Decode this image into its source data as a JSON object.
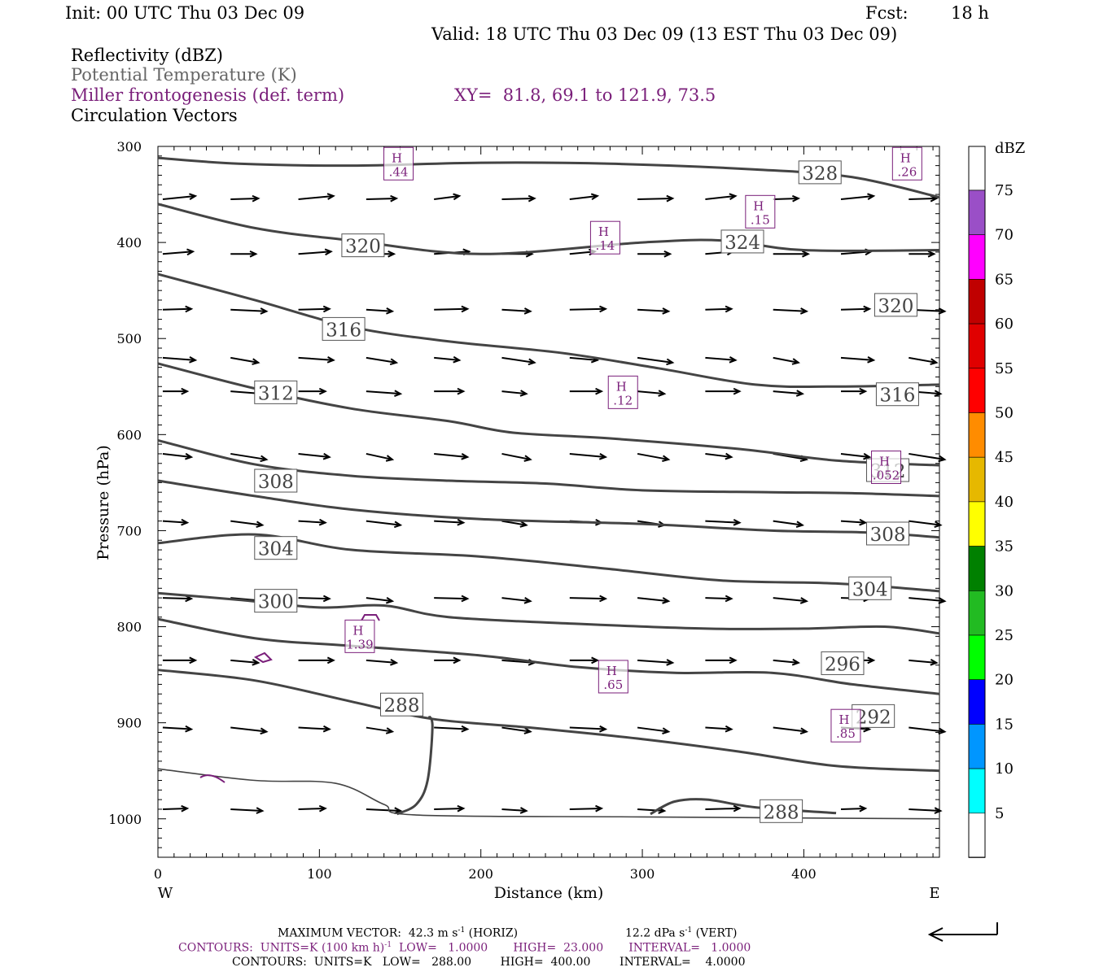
{
  "header": {
    "init": "Init: 00 UTC Thu 03 Dec 09",
    "fcst_label": "Fcst:",
    "fcst_value": "18 h",
    "valid": "Valid: 18 UTC Thu 03 Dec 09 (13 EST Thu 03 Dec 09)",
    "field1": "Reflectivity (dBZ)",
    "field2": "Potential Temperature (K)",
    "field3": "Miller frontogenesis (def. term)",
    "xy": "XY=  81.8, 69.1 to 121.9, 73.5",
    "field4": "Circulation Vectors"
  },
  "colors": {
    "theta": "#444444",
    "fronto": "#7a1f7a",
    "vector": "#000000"
  },
  "chart_data": {
    "type": "cross-section",
    "xlabel": "Distance (km)",
    "ylabel": "Pressure (hPa)",
    "xlim": [
      0,
      484
    ],
    "ylim": [
      1040,
      300
    ],
    "x_ticks": [
      "0",
      "100",
      "200",
      "300",
      "400"
    ],
    "y_ticks": [
      "300",
      "400",
      "500",
      "600",
      "700",
      "800",
      "900",
      "1000"
    ],
    "west_label": "W",
    "east_label": "E",
    "colorbar": {
      "unit": "dBZ",
      "levels": [
        "75",
        "70",
        "65",
        "60",
        "55",
        "50",
        "45",
        "40",
        "35",
        "30",
        "25",
        "20",
        "15",
        "10",
        "5"
      ],
      "colors": [
        "#9a4fc7",
        "#ff00ff",
        "#c00000",
        "#e00000",
        "#ff0000",
        "#ff8c00",
        "#e6b800",
        "#ffff00",
        "#008000",
        "#22bb22",
        "#00ff00",
        "#0000ff",
        "#0096ff",
        "#00ffff",
        "#ffffff"
      ]
    },
    "theta_labels": [
      {
        "text": "328",
        "x": 410,
        "p": 327
      },
      {
        "text": "324",
        "x": 362,
        "p": 399
      },
      {
        "text": "320",
        "x": 127,
        "p": 403
      },
      {
        "text": "320",
        "x": 457,
        "p": 465
      },
      {
        "text": "316",
        "x": 115,
        "p": 490
      },
      {
        "text": "316",
        "x": 458,
        "p": 558
      },
      {
        "text": "312",
        "x": 73,
        "p": 556
      },
      {
        "text": "312",
        "x": 452,
        "p": 637
      },
      {
        "text": "308",
        "x": 73,
        "p": 648
      },
      {
        "text": "308",
        "x": 452,
        "p": 703
      },
      {
        "text": "304",
        "x": 73,
        "p": 718
      },
      {
        "text": "304",
        "x": 441,
        "p": 760
      },
      {
        "text": "300",
        "x": 73,
        "p": 773
      },
      {
        "text": "296",
        "x": 424,
        "p": 838
      },
      {
        "text": "292",
        "x": 443,
        "p": 893
      },
      {
        "text": "288",
        "x": 151,
        "p": 881
      },
      {
        "text": "288",
        "x": 386,
        "p": 992
      }
    ],
    "fronto_maxima": [
      {
        "value": ".44",
        "x": 149,
        "p": 318
      },
      {
        "value": ".26",
        "x": 464,
        "p": 318
      },
      {
        "value": ".15",
        "x": 373,
        "p": 368
      },
      {
        "value": ".14",
        "x": 277,
        "p": 395
      },
      {
        "value": ".12",
        "x": 288,
        "p": 556
      },
      {
        "value": ".052",
        "x": 451,
        "p": 634
      },
      {
        "value": "1.39",
        "x": 125,
        "p": 810
      },
      {
        "value": ".65",
        "x": 282,
        "p": 852
      },
      {
        "value": ".85",
        "x": 426,
        "p": 903
      }
    ],
    "contours_theta": [
      {
        "level": 328,
        "points": [
          [
            0,
            312
          ],
          [
            50,
            318
          ],
          [
            120,
            320
          ],
          [
            200,
            317
          ],
          [
            280,
            318
          ],
          [
            370,
            324
          ],
          [
            430,
            332
          ],
          [
            484,
            353
          ]
        ]
      },
      {
        "level": 324,
        "points": [
          [
            0,
            360
          ],
          [
            60,
            385
          ],
          [
            120,
            398
          ],
          [
            200,
            412
          ],
          [
            300,
            400
          ],
          [
            350,
            398
          ],
          [
            400,
            408
          ],
          [
            484,
            408
          ]
        ]
      },
      {
        "level": 320,
        "points": [
          [
            0,
            433
          ],
          [
            60,
            460
          ],
          [
            120,
            488
          ],
          [
            180,
            503
          ],
          [
            250,
            515
          ],
          [
            310,
            531
          ],
          [
            370,
            548
          ],
          [
            420,
            550
          ],
          [
            484,
            548
          ]
        ]
      },
      {
        "level": 316,
        "points": [
          [
            0,
            526
          ],
          [
            60,
            552
          ],
          [
            120,
            573
          ],
          [
            180,
            586
          ],
          [
            220,
            598
          ],
          [
            280,
            604
          ],
          [
            360,
            615
          ],
          [
            420,
            627
          ],
          [
            484,
            632
          ]
        ]
      },
      {
        "level": 312,
        "points": [
          [
            0,
            606
          ],
          [
            60,
            631
          ],
          [
            120,
            643
          ],
          [
            180,
            648
          ],
          [
            240,
            651
          ],
          [
            300,
            658
          ],
          [
            380,
            660
          ],
          [
            430,
            661
          ],
          [
            484,
            664
          ]
        ]
      },
      {
        "level": 308,
        "points": [
          [
            0,
            648
          ],
          [
            60,
            664
          ],
          [
            120,
            678
          ],
          [
            200,
            688
          ],
          [
            300,
            693
          ],
          [
            380,
            700
          ],
          [
            440,
            702
          ],
          [
            484,
            707
          ]
        ]
      },
      {
        "level": 304,
        "points": [
          [
            0,
            713
          ],
          [
            60,
            704
          ],
          [
            120,
            720
          ],
          [
            200,
            727
          ],
          [
            280,
            740
          ],
          [
            350,
            752
          ],
          [
            420,
            755
          ],
          [
            484,
            763
          ]
        ]
      },
      {
        "level": 300,
        "points": [
          [
            0,
            765
          ],
          [
            50,
            772
          ],
          [
            100,
            780
          ],
          [
            140,
            778
          ],
          [
            180,
            790
          ],
          [
            260,
            797
          ],
          [
            340,
            802
          ],
          [
            400,
            802
          ],
          [
            450,
            800
          ],
          [
            484,
            807
          ]
        ]
      },
      {
        "level": 296,
        "points": [
          [
            0,
            792
          ],
          [
            60,
            812
          ],
          [
            120,
            820
          ],
          [
            200,
            830
          ],
          [
            260,
            842
          ],
          [
            320,
            848
          ],
          [
            380,
            848
          ],
          [
            430,
            860
          ],
          [
            484,
            870
          ]
        ]
      },
      {
        "level": 292,
        "points": [
          [
            0,
            845
          ],
          [
            60,
            856
          ],
          [
            120,
            878
          ],
          [
            170,
            896
          ],
          [
            230,
            905
          ],
          [
            300,
            917
          ],
          [
            360,
            930
          ],
          [
            420,
            945
          ],
          [
            484,
            950
          ]
        ]
      },
      {
        "level": 288,
        "points": [
          [
            0,
            948
          ],
          [
            60,
            960
          ],
          [
            110,
            963
          ],
          [
            140,
            985
          ],
          [
            160,
            996
          ],
          [
            300,
            998
          ],
          [
            484,
            1000
          ]
        ]
      }
    ],
    "maximum_vector": "MAXIMUM VECTOR:  42.3 m s",
    "maximum_vector_tail": "(HORIZ)",
    "max_vert": "12.2 dPa s",
    "max_vert_tail": "(VERT)",
    "contours_purple": "CONTOURS:  UNITS=K (100 km h)",
    "contours_purple_tail": "LOW=   1.0000       HIGH=  23.000       INTERVAL=   1.0000",
    "contours_black": "CONTOURS:  UNITS=K   LOW=   288.00        HIGH=  400.00        INTERVAL=    4.0000",
    "exponent": "-1"
  }
}
